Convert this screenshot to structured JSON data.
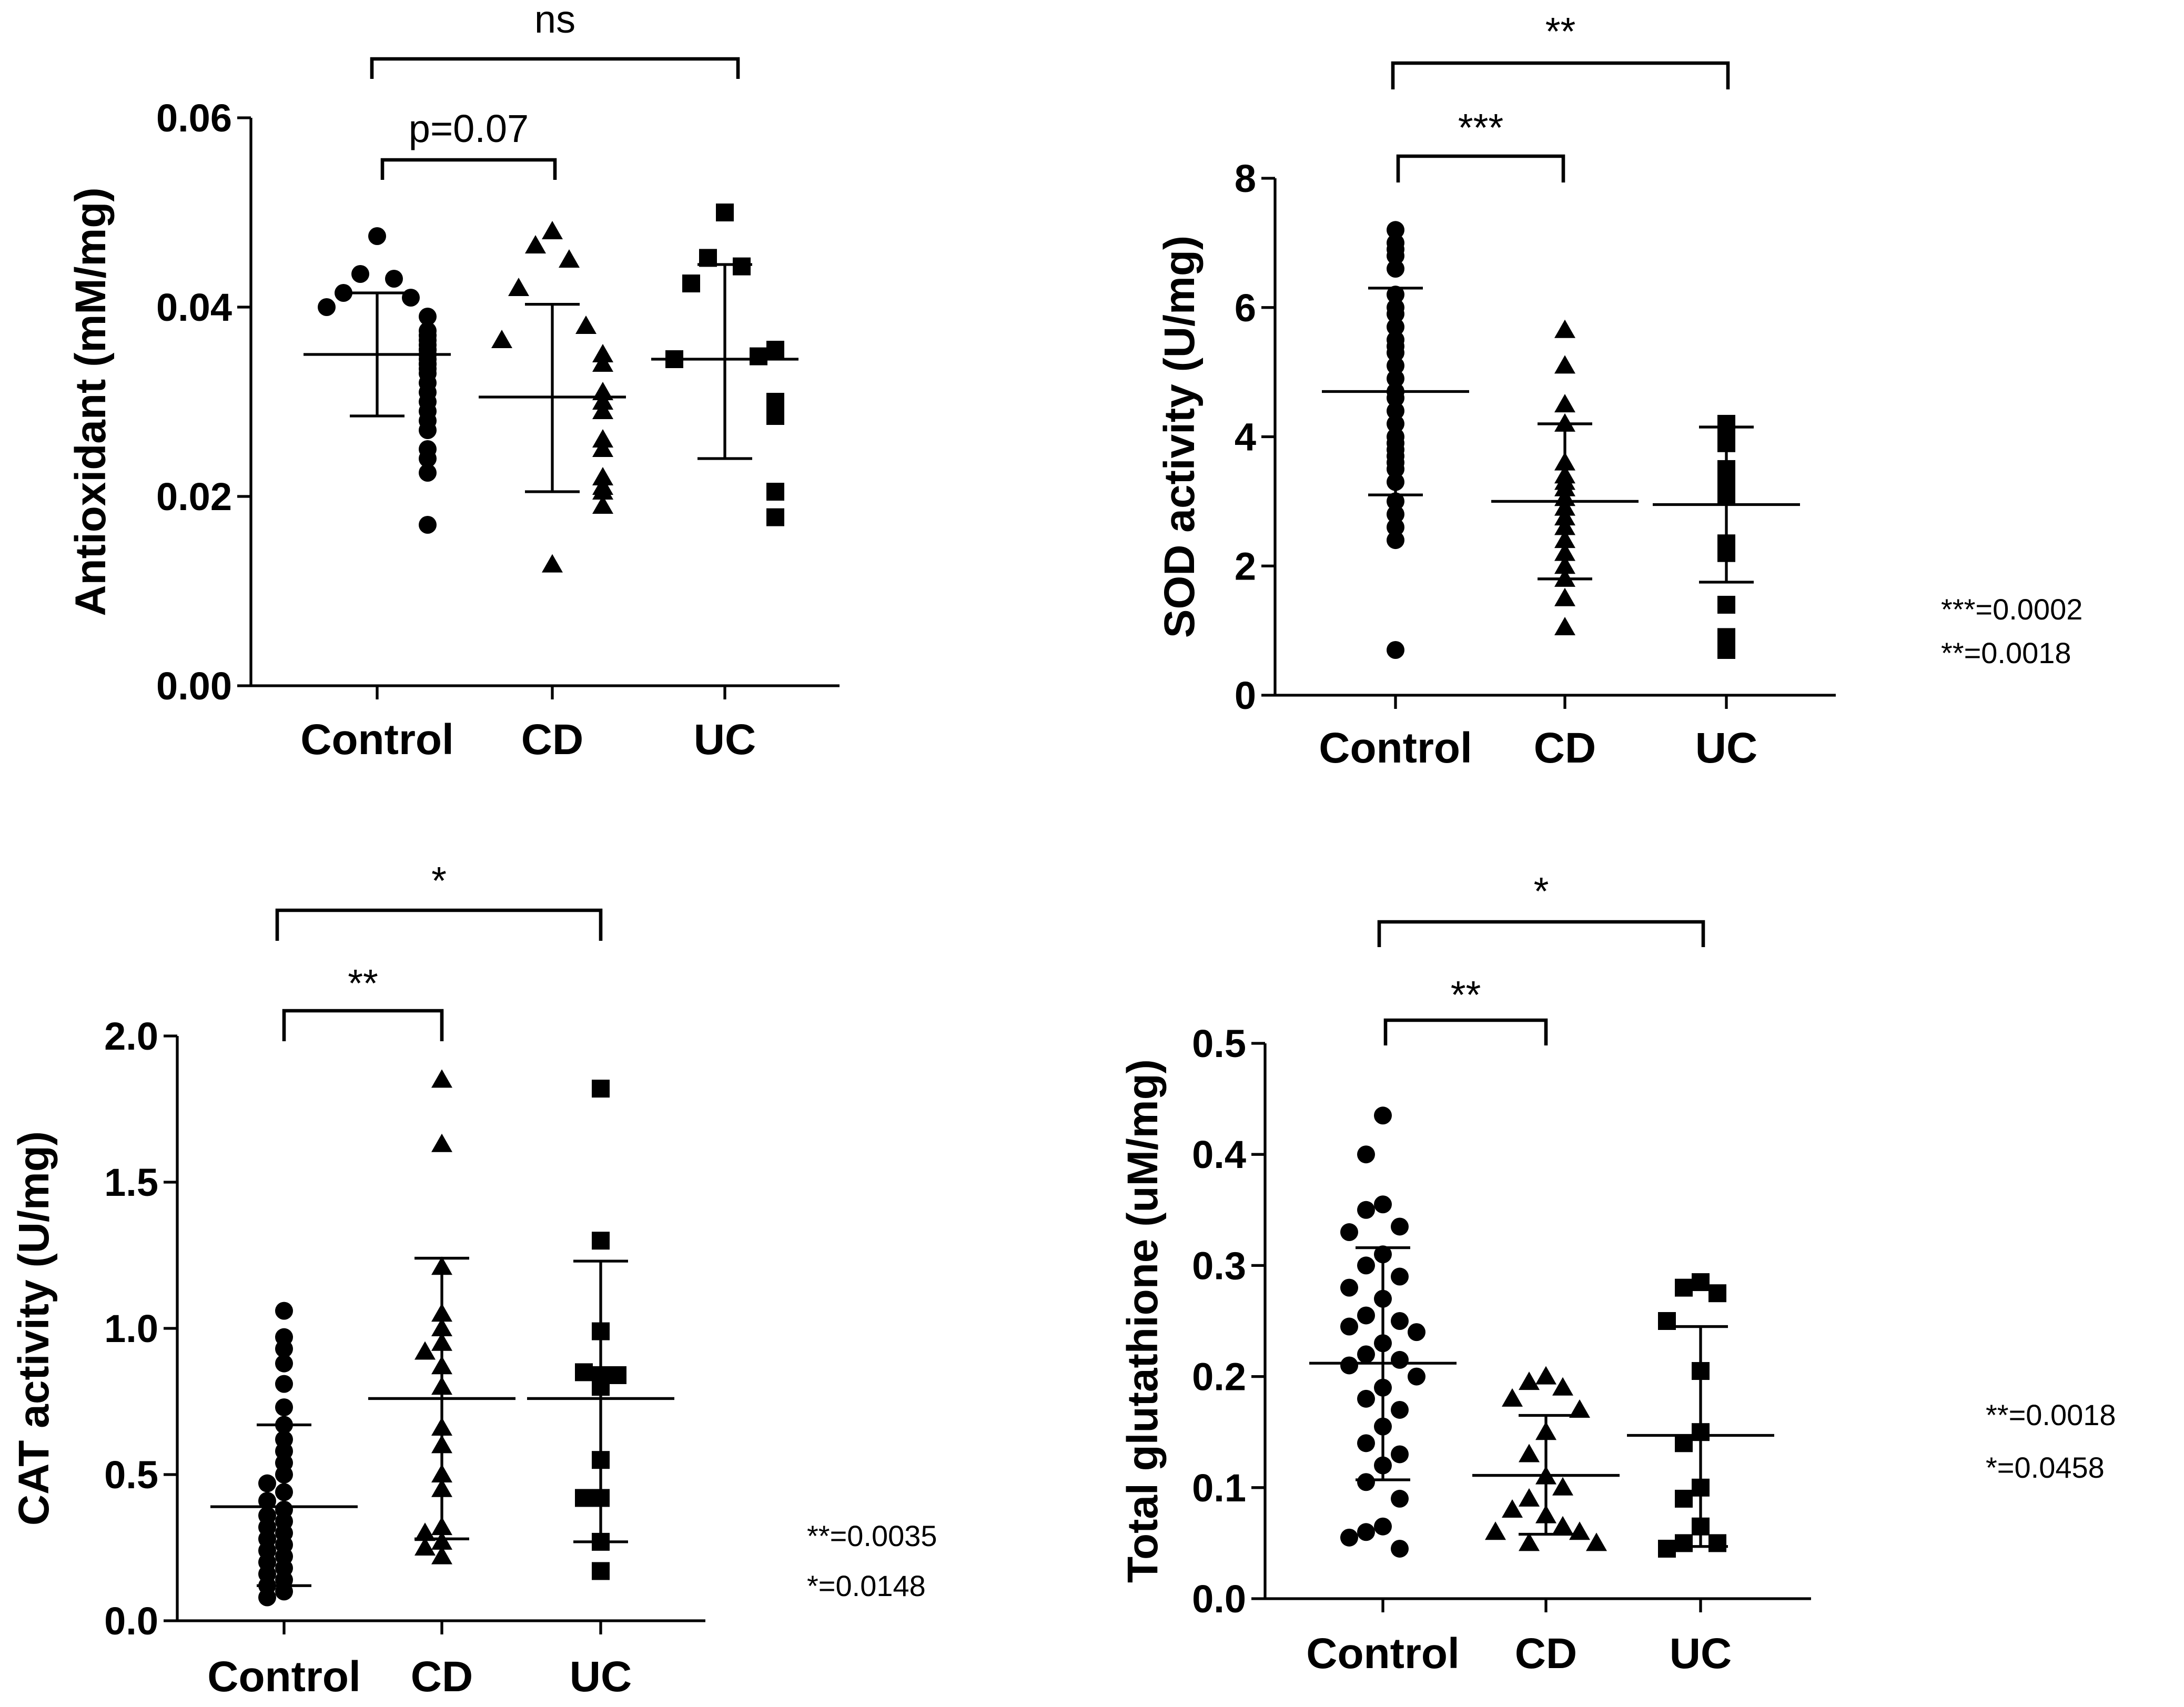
{
  "chart_data": [
    {
      "type": "scatter",
      "ylabel": "Antioxidant (mM/mg)",
      "ylim": [
        0,
        0.06
      ],
      "yticks": [
        "0.00",
        "0.02",
        "0.04",
        "0.06"
      ],
      "categories": [
        "Control",
        "CD",
        "UC"
      ],
      "summary": [
        {
          "mean": 0.035,
          "sd_low": 0.0285,
          "sd_high": 0.0415
        },
        {
          "mean": 0.0305,
          "sd_low": 0.0205,
          "sd_high": 0.0403
        },
        {
          "mean": 0.0345,
          "sd_low": 0.024,
          "sd_high": 0.0445
        }
      ],
      "points": [
        [
          0.0475,
          0.0435,
          0.043,
          0.0415,
          0.041,
          0.04,
          0.039,
          0.0375,
          0.037,
          0.0365,
          0.036,
          0.0355,
          0.0355,
          0.035,
          0.035,
          0.0345,
          0.034,
          0.034,
          0.0335,
          0.033,
          0.032,
          0.031,
          0.03,
          0.029,
          0.028,
          0.027,
          0.025,
          0.024,
          0.0225,
          0.017
        ],
        [
          0.048,
          0.0465,
          0.045,
          0.042,
          0.038,
          0.0365,
          0.035,
          0.034,
          0.031,
          0.03,
          0.029,
          0.026,
          0.025,
          0.022,
          0.021,
          0.0205,
          0.019,
          0.0128
        ],
        [
          0.05,
          0.0452,
          0.0443,
          0.0425,
          0.0348,
          0.0345,
          0.0355,
          0.03,
          0.0285,
          0.0205,
          0.0178
        ]
      ],
      "brackets": [
        {
          "from": 0,
          "to": 1,
          "label": "p=0.07"
        },
        {
          "from": 0,
          "to": 2,
          "label": "ns"
        }
      ],
      "notes": []
    },
    {
      "type": "scatter",
      "ylabel": "SOD activity (U/mg)",
      "ylim": [
        0,
        8
      ],
      "yticks": [
        "0",
        "2",
        "4",
        "6",
        "8"
      ],
      "categories": [
        "Control",
        "CD",
        "UC"
      ],
      "summary": [
        {
          "mean": 4.7,
          "sd_low": 3.1,
          "sd_high": 6.3
        },
        {
          "mean": 3.0,
          "sd_low": 1.8,
          "sd_high": 4.2
        },
        {
          "mean": 2.95,
          "sd_low": 1.75,
          "sd_high": 4.15
        }
      ],
      "points": [
        [
          7.2,
          7.0,
          6.9,
          6.8,
          6.6,
          6.2,
          6.0,
          5.9,
          5.7,
          5.5,
          5.4,
          5.3,
          5.1,
          4.9,
          4.7,
          4.6,
          4.4,
          4.2,
          4.0,
          3.9,
          3.8,
          3.7,
          3.6,
          3.5,
          3.3,
          3.0,
          2.8,
          2.6,
          2.4,
          0.7
        ],
        [
          5.65,
          5.1,
          4.5,
          4.2,
          3.6,
          3.4,
          3.3,
          3.2,
          3.05,
          2.9,
          2.75,
          2.6,
          2.4,
          2.2,
          2.0,
          1.8,
          1.5,
          1.05
        ],
        [
          4.2,
          4.0,
          3.9,
          3.5,
          3.35,
          3.25,
          3.1,
          2.35,
          2.2,
          1.4,
          0.9,
          0.7
        ]
      ],
      "brackets": [
        {
          "from": 0,
          "to": 1,
          "label": "***"
        },
        {
          "from": 0,
          "to": 2,
          "label": "**"
        }
      ],
      "notes": [
        "***=0.0002",
        "**=0.0018"
      ]
    },
    {
      "type": "scatter",
      "ylabel": "CAT activity (U/mg)",
      "ylim": [
        0,
        2.0
      ],
      "yticks": [
        "0.0",
        "0.5",
        "1.0",
        "1.5",
        "2.0"
      ],
      "categories": [
        "Control",
        "CD",
        "UC"
      ],
      "summary": [
        {
          "mean": 0.39,
          "sd_low": 0.12,
          "sd_high": 0.67
        },
        {
          "mean": 0.76,
          "sd_low": 0.28,
          "sd_high": 1.24
        },
        {
          "mean": 0.76,
          "sd_low": 0.27,
          "sd_high": 1.23
        }
      ],
      "points": [
        [
          1.06,
          0.97,
          0.93,
          0.88,
          0.81,
          0.73,
          0.67,
          0.62,
          0.58,
          0.54,
          0.5,
          0.47,
          0.44,
          0.41,
          0.38,
          0.36,
          0.34,
          0.32,
          0.3,
          0.28,
          0.26,
          0.24,
          0.22,
          0.2,
          0.18,
          0.16,
          0.14,
          0.12,
          0.1,
          0.08
        ],
        [
          1.85,
          1.63,
          1.21,
          1.05,
          1.0,
          0.95,
          0.92,
          0.87,
          0.8,
          0.66,
          0.6,
          0.5,
          0.45,
          0.32,
          0.3,
          0.27,
          0.25,
          0.22
        ],
        [
          1.82,
          1.3,
          0.99,
          0.84,
          0.85,
          0.84,
          0.8,
          0.55,
          0.42,
          0.42,
          0.27,
          0.17
        ]
      ],
      "brackets": [
        {
          "from": 0,
          "to": 1,
          "label": "**"
        },
        {
          "from": 0,
          "to": 2,
          "label": "*"
        }
      ],
      "notes": [
        "**=0.0035",
        "*=0.0148"
      ]
    },
    {
      "type": "scatter",
      "ylabel": "Total glutathione (uM/mg)",
      "ylim": [
        0,
        0.5
      ],
      "yticks": [
        "0.0",
        "0.1",
        "0.2",
        "0.3",
        "0.4",
        "0.5"
      ],
      "categories": [
        "Control",
        "CD",
        "UC"
      ],
      "summary": [
        {
          "mean": 0.212,
          "sd_low": 0.107,
          "sd_high": 0.316
        },
        {
          "mean": 0.111,
          "sd_low": 0.058,
          "sd_high": 0.165
        },
        {
          "mean": 0.147,
          "sd_low": 0.047,
          "sd_high": 0.245
        }
      ],
      "points": [
        [
          0.435,
          0.4,
          0.355,
          0.35,
          0.335,
          0.33,
          0.31,
          0.3,
          0.29,
          0.28,
          0.27,
          0.255,
          0.25,
          0.245,
          0.24,
          0.23,
          0.22,
          0.215,
          0.21,
          0.2,
          0.19,
          0.18,
          0.17,
          0.155,
          0.14,
          0.13,
          0.12,
          0.105,
          0.09,
          0.065,
          0.06,
          0.055,
          0.045
        ],
        [
          0.2,
          0.195,
          0.19,
          0.18,
          0.17,
          0.15,
          0.13,
          0.11,
          0.1,
          0.09,
          0.08,
          0.075,
          0.065,
          0.06,
          0.06,
          0.05,
          0.05
        ],
        [
          0.285,
          0.28,
          0.275,
          0.25,
          0.205,
          0.15,
          0.14,
          0.1,
          0.09,
          0.065,
          0.05,
          0.05,
          0.045
        ]
      ],
      "brackets": [
        {
          "from": 0,
          "to": 1,
          "label": "**"
        },
        {
          "from": 0,
          "to": 2,
          "label": "*"
        }
      ],
      "notes": [
        "**=0.0018",
        "*=0.0458"
      ]
    }
  ]
}
